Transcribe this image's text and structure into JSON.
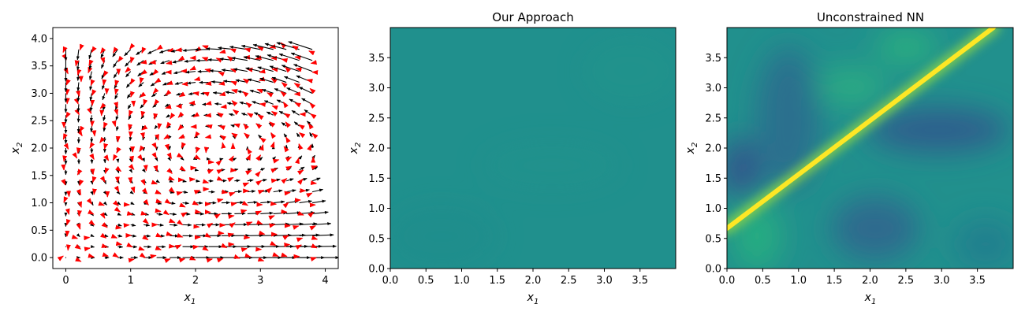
{
  "chart_data": [
    {
      "type": "quiver",
      "title": "",
      "xlabel": "x",
      "xlabel_sub": "1",
      "ylabel": "x",
      "ylabel_sub": "2",
      "xlim": [
        -0.2,
        4.2
      ],
      "ylim": [
        -0.2,
        4.2
      ],
      "xticks": [
        0,
        1,
        2,
        3,
        4
      ],
      "yticks": [
        0.0,
        0.5,
        1.0,
        1.5,
        2.0,
        2.5,
        3.0,
        3.5,
        4.0
      ],
      "ytick_labels": [
        "0.0",
        "0.5",
        "1.0",
        "1.5",
        "2.0",
        "2.5",
        "3.0",
        "3.5",
        "4.0"
      ],
      "grid_step": 0.2,
      "grid_max": 3.8,
      "colors": {
        "true_field": "#000000",
        "error_field": "#ff0000"
      }
    },
    {
      "type": "heatmap",
      "title": "Our Approach",
      "xlabel": "x",
      "xlabel_sub": "1",
      "ylabel": "x",
      "ylabel_sub": "2",
      "xlim": [
        0,
        4
      ],
      "ylim": [
        0,
        4
      ],
      "xticks": [
        "0.0",
        "0.5",
        "1.0",
        "1.5",
        "2.0",
        "2.5",
        "3.0",
        "3.5"
      ],
      "yticks": [
        "0.0",
        "0.5",
        "1.0",
        "1.5",
        "2.0",
        "2.5",
        "3.0",
        "3.5"
      ],
      "colormap": "viridis",
      "description_values": "nearly uniform field",
      "base_color": "#20908d"
    },
    {
      "type": "heatmap",
      "title": "Unconstrained NN",
      "xlabel": "x",
      "xlabel_sub": "1",
      "ylabel": "x",
      "ylabel_sub": "2",
      "xlim": [
        0,
        4
      ],
      "ylim": [
        0,
        4
      ],
      "xticks": [
        "0.0",
        "0.5",
        "1.0",
        "1.5",
        "2.0",
        "2.5",
        "3.0",
        "3.5"
      ],
      "yticks": [
        "0.0",
        "0.5",
        "1.0",
        "1.5",
        "2.0",
        "2.5",
        "3.0",
        "3.5"
      ],
      "colormap": "viridis",
      "ridge": {
        "x_start": 0.0,
        "y_start": 0.6,
        "x_end": 3.7,
        "y_end": 4.0
      },
      "colors": {
        "low": "#34618d",
        "mid": "#21908d",
        "high": "#fde725"
      }
    }
  ]
}
